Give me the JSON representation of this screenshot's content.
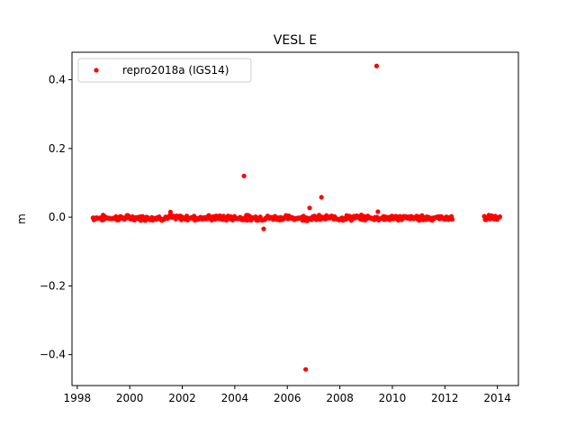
{
  "chart_data": {
    "type": "scatter",
    "title": "VESL E",
    "xlabel": "",
    "ylabel": "m",
    "xlim": [
      1997.8,
      2014.8
    ],
    "ylim": [
      -0.49,
      0.48
    ],
    "x_ticks": [
      1998,
      2000,
      2002,
      2004,
      2006,
      2008,
      2010,
      2012,
      2014
    ],
    "x_tick_labels": [
      "1998",
      "2000",
      "2002",
      "2004",
      "2006",
      "2008",
      "2010",
      "2012",
      "2014"
    ],
    "y_ticks": [
      -0.4,
      -0.2,
      0.0,
      0.2,
      0.4
    ],
    "y_tick_labels": [
      "−0.4",
      "−0.2",
      "0.0",
      "0.2",
      "0.4"
    ],
    "grid": false,
    "legend": {
      "placement": "top-left",
      "entries": [
        "repro2018a (IGS14)"
      ]
    },
    "series": [
      {
        "name": "repro2018a (IGS14)",
        "color": "#ff0000",
        "marker": "circle",
        "segments": [
          [
            1998.6,
            2012.3
          ],
          [
            2013.5,
            2014.1
          ]
        ],
        "baseline_value": -0.002,
        "points": [
          {
            "x": 2009.4,
            "y": 0.44
          },
          {
            "x": 2004.35,
            "y": 0.12
          },
          {
            "x": 2007.3,
            "y": 0.058
          },
          {
            "x": 2006.85,
            "y": 0.027
          },
          {
            "x": 2009.45,
            "y": 0.016
          },
          {
            "x": 2001.55,
            "y": 0.015
          },
          {
            "x": 2005.1,
            "y": -0.034
          },
          {
            "x": 2006.7,
            "y": -0.443
          }
        ]
      }
    ]
  }
}
